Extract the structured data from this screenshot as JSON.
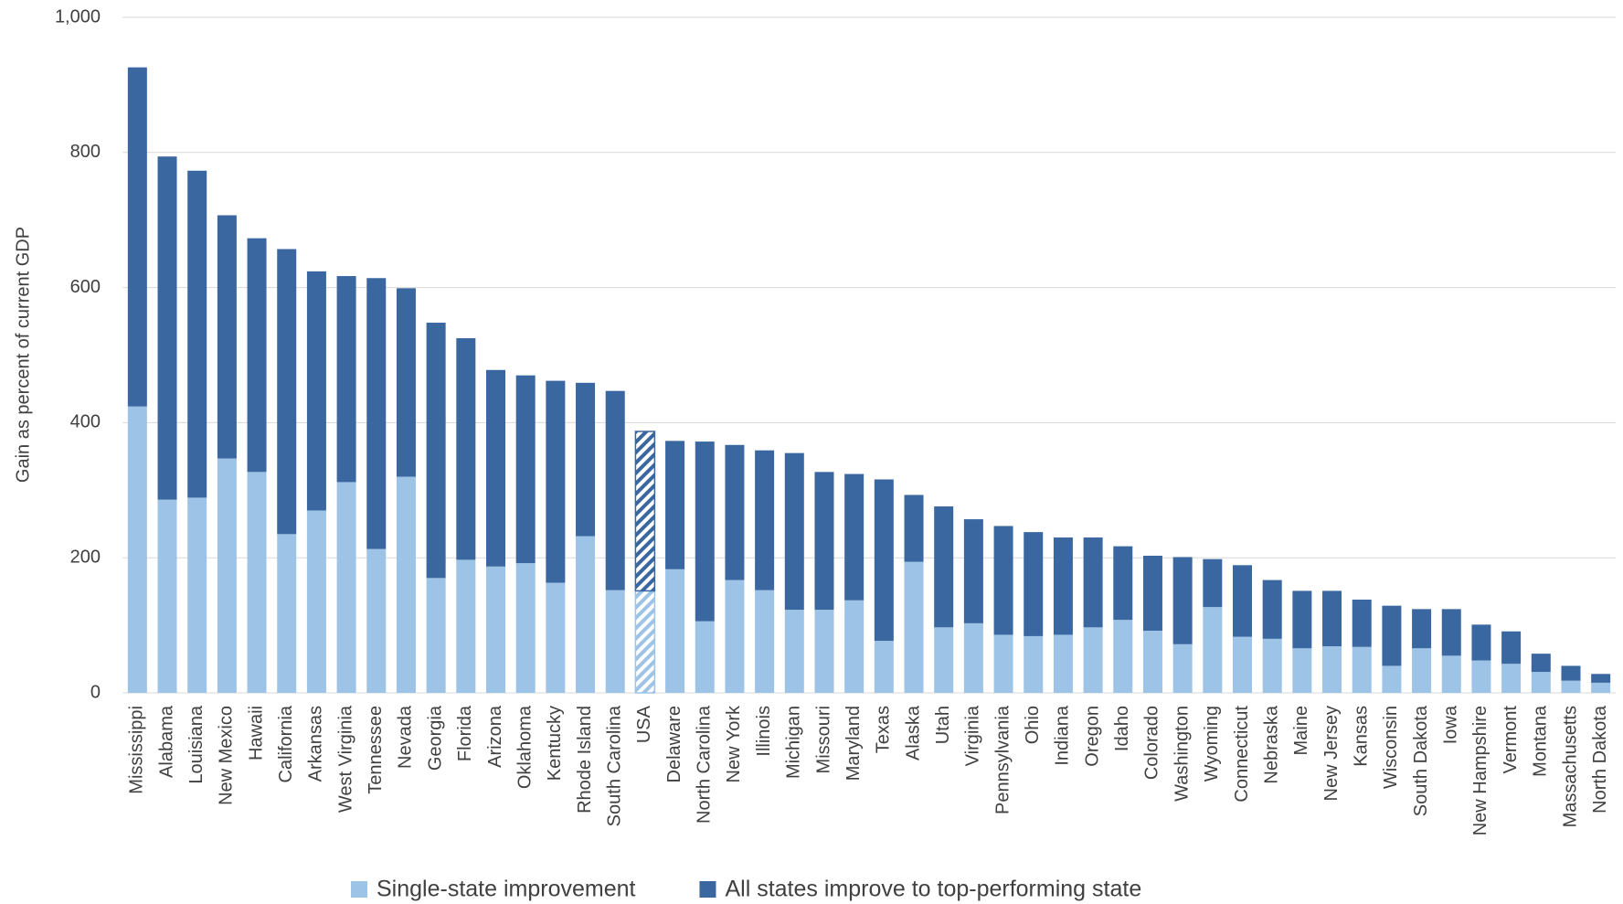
{
  "chart_data": {
    "type": "stacked_bar",
    "y_label": "Gain as percent of current GDP",
    "categories": [
      "Mississippi",
      "Alabama",
      "Louisiana",
      "New Mexico",
      "Hawaii",
      "California",
      "Arkansas",
      "West Virginia",
      "Tennessee",
      "Nevada",
      "Georgia",
      "Florida",
      "Arizona",
      "Oklahoma",
      "Kentucky",
      "Rhode Island",
      "South Carolina",
      "USA",
      "Delaware",
      "North Carolina",
      "New York",
      "Illinois",
      "Michigan",
      "Missouri",
      "Maryland",
      "Texas",
      "Alaska",
      "Utah",
      "Virginia",
      "Pennsylvania",
      "Ohio",
      "Indiana",
      "Oregon",
      "Idaho",
      "Colorado",
      "Washington",
      "Wyoming",
      "Connecticut",
      "Nebraska",
      "Maine",
      "New Jersey",
      "Kansas",
      "Wisconsin",
      "South Dakota",
      "Iowa",
      "New Hampshire",
      "Vermont",
      "Montana",
      "Massachusetts",
      "North Dakota"
    ],
    "series": [
      {
        "name": "Single-state improvement",
        "color": "#9dc3e6",
        "values": [
          424,
          286,
          289,
          347,
          327,
          235,
          270,
          312,
          213,
          320,
          170,
          197,
          187,
          192,
          163,
          232,
          152,
          151,
          183,
          106,
          167,
          152,
          123,
          123,
          137,
          77,
          194,
          97,
          103,
          86,
          84,
          86,
          97,
          108,
          92,
          72,
          127,
          83,
          80,
          66,
          69,
          68,
          40,
          66,
          55,
          48,
          43,
          31,
          18,
          15
        ]
      },
      {
        "name": "All states improve to top-performing state",
        "color": "#3a67a0",
        "values": [
          502,
          508,
          484,
          360,
          346,
          422,
          354,
          305,
          401,
          279,
          378,
          328,
          291,
          278,
          299,
          227,
          295,
          236,
          190,
          266,
          200,
          207,
          232,
          204,
          187,
          239,
          99,
          179,
          154,
          161,
          154,
          144,
          133,
          109,
          111,
          129,
          71,
          106,
          87,
          85,
          82,
          70,
          89,
          58,
          69,
          53,
          48,
          27,
          22,
          13
        ]
      }
    ],
    "hatched_category_index": 17,
    "ylim": [
      0,
      1000
    ],
    "yticks": [
      0,
      200,
      400,
      600,
      800,
      {
        "value": 1000,
        "label": "1,000"
      }
    ],
    "grid": true
  }
}
